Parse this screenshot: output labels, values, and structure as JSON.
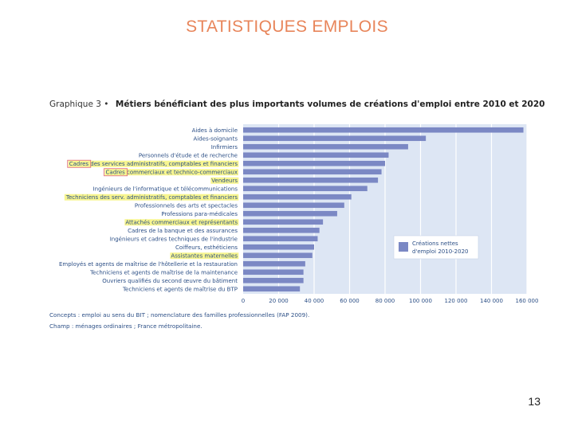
{
  "slide": {
    "title": "STATISTIQUES EMPLOIS",
    "page_number": "13"
  },
  "colors": {
    "bar": "#7b88c4",
    "plot_bg": "#dde6f4",
    "grid": "#ffffff",
    "highlight": "#f4f16a",
    "box_outline": "#e0707a",
    "text": "#2c4f86"
  },
  "chart_data": {
    "type": "bar",
    "orientation": "horizontal",
    "title_prefix": "Graphique 3 •",
    "title": "Métiers bénéficiant des plus importants volumes de créations d'emploi entre 2010 et 2020",
    "categories": [
      "Aides à domicile",
      "Aides-soignants",
      "Infirmiers",
      "Personnels d'étude et de recherche",
      "Cadres des services administratifs, comptables et financiers",
      "Cadres commerciaux et technico-commerciaux",
      "Vendeurs",
      "Ingénieurs de l'informatique et télécommunications",
      "Techniciens des serv. administratifs, comptables et financiers",
      "Professionnels des arts et spectacles",
      "Professions para-médicales",
      "Attachés commerciaux et représentants",
      "Cadres de la banque et des assurances",
      "Ingénieurs et cadres techniques de l'industrie",
      "Coiffeurs, esthéticiens",
      "Assistantes maternelles",
      "Employés et agents de maîtrise de l'hôtellerie et la restauration",
      "Techniciens et agents de maîtrise de la maintenance",
      "Ouvriers qualifiés du second œuvre du bâtiment",
      "Techniciens et agents de maîtrise du BTP"
    ],
    "series": [
      {
        "name": "Créations nettes d'emploi 2010-2020",
        "values": [
          158000,
          103000,
          93000,
          82000,
          80000,
          78000,
          76000,
          70000,
          61000,
          57000,
          53000,
          45000,
          43000,
          42000,
          40000,
          39000,
          35000,
          34000,
          34000,
          32000
        ]
      }
    ],
    "xlim": [
      0,
      160000
    ],
    "xticks": [
      "0",
      "20 000",
      "40 000",
      "60 000",
      "80 000",
      "100 000",
      "120 000",
      "140 000",
      "160 000"
    ],
    "xtick_values": [
      0,
      20000,
      40000,
      60000,
      80000,
      100000,
      120000,
      140000,
      160000
    ],
    "legend": {
      "position": "bottom-right",
      "lines": [
        "Créations nettes",
        "d'emploi 2010-2020"
      ]
    },
    "grid": true,
    "highlighted_categories": [
      4,
      5,
      6,
      8,
      11,
      15
    ],
    "boxed_categories": [
      4,
      5
    ],
    "notes": [
      "Concepts : emploi au sens du BIT ; nomenclature des familles professionnelles (FAP 2009).",
      "Champ : ménages ordinaires ; France métropolitaine."
    ]
  }
}
